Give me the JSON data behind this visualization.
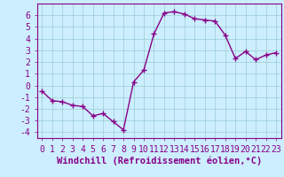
{
  "x": [
    0,
    1,
    2,
    3,
    4,
    5,
    6,
    7,
    8,
    9,
    10,
    11,
    12,
    13,
    14,
    15,
    16,
    17,
    18,
    19,
    20,
    21,
    22,
    23
  ],
  "y": [
    -0.5,
    -1.3,
    -1.4,
    -1.7,
    -1.8,
    -2.6,
    -2.4,
    -3.1,
    -3.8,
    0.3,
    1.3,
    4.4,
    6.2,
    6.3,
    6.1,
    5.7,
    5.6,
    5.5,
    4.3,
    2.3,
    2.9,
    2.2,
    2.6,
    2.8
  ],
  "line_color": "#880088",
  "marker": "+",
  "marker_size": 4,
  "marker_linewidth": 1.0,
  "line_width": 1.0,
  "xlabel": "Windchill (Refroidissement éolien,°C)",
  "xlim": [
    -0.5,
    23.5
  ],
  "ylim": [
    -4.5,
    7.0
  ],
  "yticks": [
    -4,
    -3,
    -2,
    -1,
    0,
    1,
    2,
    3,
    4,
    5,
    6
  ],
  "xticks": [
    0,
    1,
    2,
    3,
    4,
    5,
    6,
    7,
    8,
    9,
    10,
    11,
    12,
    13,
    14,
    15,
    16,
    17,
    18,
    19,
    20,
    21,
    22,
    23
  ],
  "bg_color": "#cceeff",
  "grid_color": "#99cccc",
  "text_color": "#880088",
  "xlabel_fontsize": 7.5,
  "tick_fontsize": 7.0,
  "spine_color": "#880088"
}
